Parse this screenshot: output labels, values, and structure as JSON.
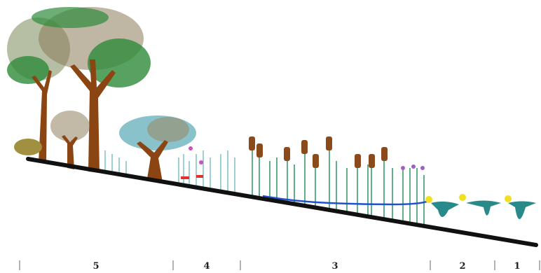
{
  "zones": [
    {
      "label": "5"
    },
    {
      "label": "4"
    },
    {
      "label": "3"
    },
    {
      "label": "2"
    },
    {
      "label": "1"
    }
  ]
}
